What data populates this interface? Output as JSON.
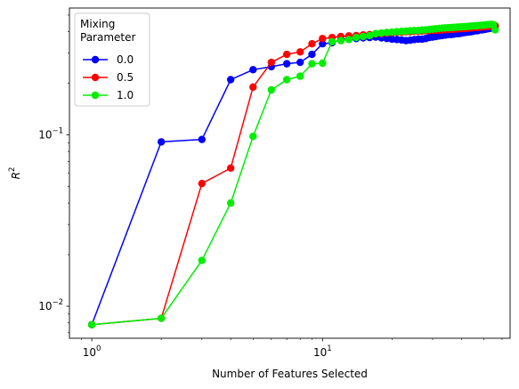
{
  "chart_data": {
    "type": "line",
    "xlabel": "Number of Features Selected",
    "ylabel": "R",
    "ylabel_superscript": "2",
    "xscale": "log",
    "yscale": "log",
    "xlim": [
      0.8,
      65
    ],
    "ylim": [
      0.0065,
      0.55
    ],
    "grid": false,
    "x_ticks": [
      {
        "value": 1,
        "base": "10",
        "exp": "0"
      },
      {
        "value": 10,
        "base": "10",
        "exp": "1"
      }
    ],
    "y_ticks": [
      {
        "value": 0.01,
        "base": "10",
        "exp": "−2"
      },
      {
        "value": 0.1,
        "base": "10",
        "exp": "−1"
      }
    ],
    "legend": {
      "title_lines": [
        "Mixing",
        "Parameter"
      ],
      "placement": "upper-left"
    },
    "series": [
      {
        "name": "0.0",
        "color": "#0000ff",
        "x": [
          1,
          2,
          3,
          4,
          5,
          6,
          7,
          8,
          9,
          10,
          11,
          12,
          13,
          14,
          15,
          16,
          17,
          18,
          19,
          20,
          21,
          22,
          23,
          24,
          25,
          26,
          27,
          28,
          29,
          30,
          31,
          32,
          33,
          34,
          35,
          36,
          37,
          38,
          39,
          40,
          41,
          42,
          43,
          44,
          45,
          46,
          47,
          48,
          49,
          50,
          51,
          52,
          53,
          54,
          55,
          56
        ],
        "y": [
          0.0078,
          0.091,
          0.094,
          0.21,
          0.24,
          0.25,
          0.26,
          0.265,
          0.295,
          0.34,
          0.345,
          0.36,
          0.362,
          0.365,
          0.368,
          0.37,
          0.372,
          0.368,
          0.365,
          0.362,
          0.36,
          0.358,
          0.355,
          0.357,
          0.36,
          0.362,
          0.362,
          0.365,
          0.37,
          0.372,
          0.375,
          0.378,
          0.38,
          0.382,
          0.385,
          0.385,
          0.387,
          0.39,
          0.39,
          0.392,
          0.395,
          0.397,
          0.398,
          0.4,
          0.402,
          0.405,
          0.405,
          0.41,
          0.41,
          0.412,
          0.414,
          0.416,
          0.418,
          0.42,
          0.422,
          0.425
        ]
      },
      {
        "name": "0.5",
        "color": "#ff0000",
        "x": [
          1,
          2,
          3,
          4,
          5,
          6,
          7,
          8,
          9,
          10,
          11,
          12,
          13,
          14,
          15,
          16,
          17,
          18,
          19,
          20,
          21,
          22,
          23,
          24,
          25,
          26,
          27,
          28,
          29,
          30,
          31,
          32,
          33,
          34,
          35,
          36,
          37,
          38,
          39,
          40,
          41,
          42,
          43,
          44,
          45,
          46,
          47,
          48,
          49,
          50,
          51,
          52,
          53,
          54,
          55,
          56
        ],
        "y": [
          0.0078,
          0.0085,
          0.052,
          0.064,
          0.19,
          0.265,
          0.295,
          0.305,
          0.34,
          0.365,
          0.37,
          0.375,
          0.378,
          0.38,
          0.383,
          0.385,
          0.388,
          0.39,
          0.392,
          0.395,
          0.397,
          0.398,
          0.4,
          0.4,
          0.402,
          0.403,
          0.404,
          0.405,
          0.406,
          0.407,
          0.408,
          0.409,
          0.41,
          0.411,
          0.412,
          0.413,
          0.414,
          0.415,
          0.416,
          0.417,
          0.418,
          0.419,
          0.42,
          0.421,
          0.422,
          0.423,
          0.424,
          0.425,
          0.426,
          0.427,
          0.428,
          0.429,
          0.43,
          0.431,
          0.432,
          0.433
        ]
      },
      {
        "name": "1.0",
        "color": "#00ee00",
        "x": [
          1,
          2,
          3,
          4,
          5,
          6,
          7,
          8,
          9,
          10,
          11,
          12,
          13,
          14,
          15,
          16,
          17,
          18,
          19,
          20,
          21,
          22,
          23,
          24,
          25,
          26,
          27,
          28,
          29,
          30,
          31,
          32,
          33,
          34,
          35,
          36,
          37,
          38,
          39,
          40,
          41,
          42,
          43,
          44,
          45,
          46,
          47,
          48,
          49,
          50,
          51,
          52,
          53,
          54,
          55,
          56
        ],
        "y": [
          0.0078,
          0.0085,
          0.0185,
          0.04,
          0.098,
          0.183,
          0.21,
          0.22,
          0.26,
          0.262,
          0.35,
          0.355,
          0.36,
          0.37,
          0.375,
          0.38,
          0.39,
          0.393,
          0.396,
          0.398,
          0.4,
          0.402,
          0.403,
          0.405,
          0.406,
          0.407,
          0.409,
          0.41,
          0.412,
          0.414,
          0.416,
          0.418,
          0.42,
          0.421,
          0.422,
          0.423,
          0.424,
          0.425,
          0.426,
          0.427,
          0.428,
          0.429,
          0.43,
          0.431,
          0.432,
          0.433,
          0.434,
          0.435,
          0.436,
          0.437,
          0.438,
          0.44,
          0.441,
          0.442,
          0.44,
          0.41
        ]
      }
    ]
  }
}
